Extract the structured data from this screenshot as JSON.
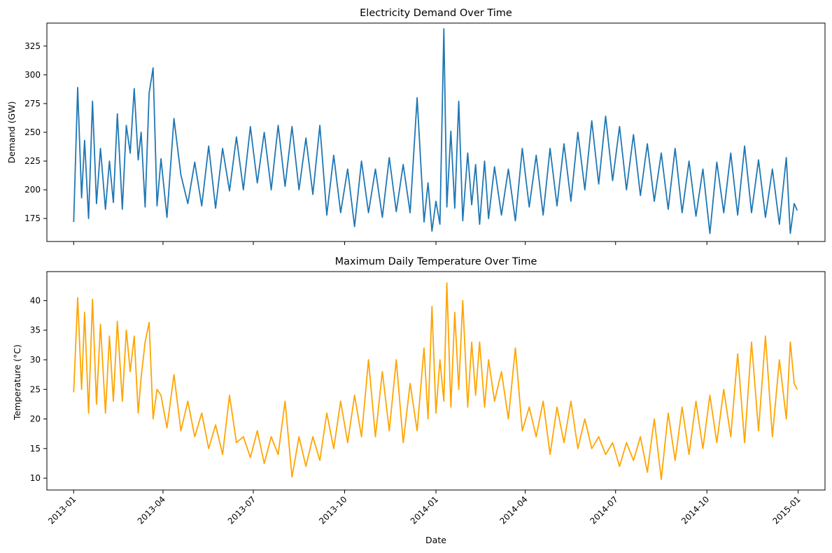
{
  "chart_data": [
    {
      "type": "line",
      "title": "Electricity Demand Over Time",
      "xlabel": "",
      "ylabel": "Demand (GW)",
      "ylim": [
        155,
        345
      ],
      "yticks": [
        175,
        200,
        225,
        250,
        275,
        300,
        325
      ],
      "xlim": [
        "2012-12-05",
        "2015-01-28"
      ],
      "xticks": [
        "2013-01",
        "2013-04",
        "2013-07",
        "2013-10",
        "2014-01",
        "2014-04",
        "2014-07",
        "2014-10",
        "2015-01"
      ],
      "grid": false,
      "color": "#1f77b4",
      "series": [
        {
          "x": [
            "2013-01-01",
            "2013-01-05",
            "2013-01-09",
            "2013-01-12",
            "2013-01-16",
            "2013-01-20",
            "2013-01-24",
            "2013-01-28",
            "2013-02-02",
            "2013-02-06",
            "2013-02-10",
            "2013-02-14",
            "2013-02-19",
            "2013-02-23",
            "2013-02-27",
            "2013-03-03",
            "2013-03-07",
            "2013-03-10",
            "2013-03-14",
            "2013-03-18",
            "2013-03-22",
            "2013-03-26",
            "2013-03-30",
            "2013-04-05",
            "2013-04-12",
            "2013-04-19",
            "2013-04-26",
            "2013-05-03",
            "2013-05-10",
            "2013-05-17",
            "2013-05-24",
            "2013-05-31",
            "2013-06-07",
            "2013-06-14",
            "2013-06-21",
            "2013-06-28",
            "2013-07-05",
            "2013-07-12",
            "2013-07-19",
            "2013-07-26",
            "2013-08-02",
            "2013-08-09",
            "2013-08-16",
            "2013-08-23",
            "2013-08-30",
            "2013-09-06",
            "2013-09-13",
            "2013-09-20",
            "2013-09-27",
            "2013-10-04",
            "2013-10-11",
            "2013-10-18",
            "2013-10-25",
            "2013-11-01",
            "2013-11-08",
            "2013-11-15",
            "2013-11-22",
            "2013-11-29",
            "2013-12-06",
            "2013-12-13",
            "2013-12-20",
            "2013-12-24",
            "2013-12-28",
            "2014-01-01",
            "2014-01-05",
            "2014-01-09",
            "2014-01-12",
            "2014-01-16",
            "2014-01-20",
            "2014-01-24",
            "2014-01-28",
            "2014-02-02",
            "2014-02-06",
            "2014-02-10",
            "2014-02-14",
            "2014-02-19",
            "2014-02-23",
            "2014-03-01",
            "2014-03-08",
            "2014-03-15",
            "2014-03-22",
            "2014-03-29",
            "2014-04-05",
            "2014-04-12",
            "2014-04-19",
            "2014-04-26",
            "2014-05-03",
            "2014-05-10",
            "2014-05-17",
            "2014-05-24",
            "2014-05-31",
            "2014-06-07",
            "2014-06-14",
            "2014-06-21",
            "2014-06-28",
            "2014-07-05",
            "2014-07-12",
            "2014-07-19",
            "2014-07-26",
            "2014-08-02",
            "2014-08-09",
            "2014-08-16",
            "2014-08-23",
            "2014-08-30",
            "2014-09-06",
            "2014-09-13",
            "2014-09-20",
            "2014-09-27",
            "2014-10-04",
            "2014-10-11",
            "2014-10-18",
            "2014-10-25",
            "2014-11-01",
            "2014-11-08",
            "2014-11-15",
            "2014-11-22",
            "2014-11-29",
            "2014-12-06",
            "2014-12-13",
            "2014-12-20",
            "2014-12-24",
            "2014-12-28",
            "2014-12-31"
          ],
          "values": [
            172,
            289,
            193,
            243,
            175,
            277,
            188,
            236,
            183,
            225,
            189,
            266,
            183,
            256,
            232,
            288,
            226,
            250,
            185,
            284,
            306,
            186,
            227,
            176,
            262,
            213,
            188,
            224,
            186,
            238,
            184,
            236,
            199,
            246,
            200,
            255,
            206,
            250,
            200,
            256,
            203,
            255,
            200,
            245,
            196,
            256,
            178,
            230,
            180,
            218,
            168,
            225,
            180,
            218,
            176,
            228,
            181,
            222,
            180,
            280,
            172,
            206,
            164,
            190,
            170,
            340,
            185,
            251,
            184,
            277,
            173,
            232,
            187,
            222,
            170,
            225,
            175,
            220,
            178,
            218,
            173,
            236,
            185,
            230,
            178,
            236,
            186,
            240,
            190,
            250,
            200,
            260,
            205,
            264,
            208,
            255,
            200,
            248,
            195,
            240,
            190,
            232,
            183,
            236,
            180,
            225,
            177,
            218,
            162,
            224,
            180,
            232,
            178,
            238,
            180,
            226,
            176,
            218,
            170,
            228,
            162,
            188,
            182
          ]
        }
      ]
    },
    {
      "type": "line",
      "title": "Maximum Daily Temperature Over Time",
      "xlabel": "Date",
      "ylabel": "Temperature (°C)",
      "ylim": [
        8.0,
        44.9
      ],
      "yticks": [
        10,
        15,
        20,
        25,
        30,
        35,
        40
      ],
      "xlim": [
        "2012-12-05",
        "2015-01-28"
      ],
      "xticks": [
        "2013-01",
        "2013-04",
        "2013-07",
        "2013-10",
        "2014-01",
        "2014-04",
        "2014-07",
        "2014-10",
        "2015-01"
      ],
      "grid": false,
      "color": "#ffa500",
      "series": [
        {
          "x": [
            "2013-01-01",
            "2013-01-05",
            "2013-01-09",
            "2013-01-12",
            "2013-01-16",
            "2013-01-20",
            "2013-01-24",
            "2013-01-28",
            "2013-02-02",
            "2013-02-06",
            "2013-02-10",
            "2013-02-14",
            "2013-02-19",
            "2013-02-23",
            "2013-02-27",
            "2013-03-03",
            "2013-03-07",
            "2013-03-10",
            "2013-03-14",
            "2013-03-18",
            "2013-03-22",
            "2013-03-26",
            "2013-03-30",
            "2013-04-05",
            "2013-04-12",
            "2013-04-19",
            "2013-04-26",
            "2013-05-03",
            "2013-05-10",
            "2013-05-17",
            "2013-05-24",
            "2013-05-31",
            "2013-06-07",
            "2013-06-14",
            "2013-06-21",
            "2013-06-28",
            "2013-07-05",
            "2013-07-12",
            "2013-07-19",
            "2013-07-26",
            "2013-08-02",
            "2013-08-09",
            "2013-08-16",
            "2013-08-23",
            "2013-08-30",
            "2013-09-06",
            "2013-09-13",
            "2013-09-20",
            "2013-09-27",
            "2013-10-04",
            "2013-10-11",
            "2013-10-18",
            "2013-10-25",
            "2013-11-01",
            "2013-11-08",
            "2013-11-15",
            "2013-11-22",
            "2013-11-29",
            "2013-12-06",
            "2013-12-13",
            "2013-12-20",
            "2013-12-24",
            "2013-12-28",
            "2014-01-01",
            "2014-01-05",
            "2014-01-09",
            "2014-01-12",
            "2014-01-16",
            "2014-01-20",
            "2014-01-24",
            "2014-01-28",
            "2014-02-02",
            "2014-02-06",
            "2014-02-10",
            "2014-02-14",
            "2014-02-19",
            "2014-02-23",
            "2014-03-01",
            "2014-03-08",
            "2014-03-15",
            "2014-03-22",
            "2014-03-29",
            "2014-04-05",
            "2014-04-12",
            "2014-04-19",
            "2014-04-26",
            "2014-05-03",
            "2014-05-10",
            "2014-05-17",
            "2014-05-24",
            "2014-05-31",
            "2014-06-07",
            "2014-06-14",
            "2014-06-21",
            "2014-06-28",
            "2014-07-05",
            "2014-07-12",
            "2014-07-19",
            "2014-07-26",
            "2014-08-02",
            "2014-08-09",
            "2014-08-16",
            "2014-08-23",
            "2014-08-30",
            "2014-09-06",
            "2014-09-13",
            "2014-09-20",
            "2014-09-27",
            "2014-10-04",
            "2014-10-11",
            "2014-10-18",
            "2014-10-25",
            "2014-11-01",
            "2014-11-08",
            "2014-11-15",
            "2014-11-22",
            "2014-11-29",
            "2014-12-06",
            "2014-12-13",
            "2014-12-20",
            "2014-12-24",
            "2014-12-28",
            "2014-12-31"
          ],
          "values": [
            24.5,
            40.5,
            25,
            38,
            21,
            40.2,
            22.5,
            36,
            21,
            34,
            23,
            36.5,
            23,
            35,
            28,
            34,
            21,
            27,
            33,
            36.3,
            20,
            25,
            24,
            18.5,
            27.5,
            18,
            23,
            17,
            21,
            15,
            19,
            14,
            24,
            16,
            17,
            13.5,
            18,
            12.5,
            17,
            14,
            23,
            10.2,
            17,
            12,
            17,
            13,
            21,
            15,
            23,
            16,
            24,
            17,
            30,
            17,
            28,
            18,
            30,
            16,
            26,
            18,
            32,
            20,
            39,
            21,
            30,
            23,
            43,
            22,
            38,
            25,
            40,
            22,
            33,
            24,
            33,
            22,
            30,
            23,
            28,
            20,
            32,
            18,
            22,
            17,
            23,
            14,
            22,
            16,
            23,
            15,
            20,
            15,
            17,
            14,
            16,
            12,
            16,
            13,
            17,
            11,
            20,
            9.8,
            21,
            13,
            22,
            14,
            23,
            15,
            24,
            16,
            25,
            17,
            31,
            16,
            33,
            18,
            34,
            17,
            30,
            20,
            33,
            26,
            25
          ]
        }
      ]
    }
  ]
}
